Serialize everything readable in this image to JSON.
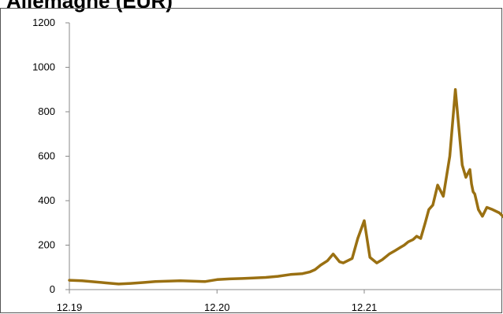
{
  "chart_data": {
    "type": "line",
    "title": "Allemagne (EUR)",
    "xlabel": "",
    "ylabel": "",
    "ylim": [
      0,
      1200
    ],
    "yticks": [
      0,
      200,
      400,
      600,
      800,
      1000,
      1200
    ],
    "xticks": [
      "12.19",
      "12.20",
      "12.21"
    ],
    "grid": false,
    "color": "#9A7012",
    "series": [
      {
        "x": [
          "2019-12",
          "2020-01",
          "2020-02",
          "2020-03",
          "2020-04",
          "2020-05",
          "2020-06",
          "2020-07",
          "2020-08",
          "2020-09",
          "2020-10",
          "2020-11",
          "2020-12",
          "2021-01",
          "2021-02",
          "2021-03",
          "2021-04",
          "2021-05",
          "2021-06",
          "2021-07",
          "2021-07-20",
          "2021-08",
          "2021-08-15",
          "2021-09",
          "2021-09-15",
          "2021-10",
          "2021-10-10",
          "2021-11",
          "2021-11-15",
          "2021-12",
          "2021-12-15",
          "2022-01",
          "2022-01-15",
          "2022-02",
          "2022-02-15",
          "2022-03",
          "2022-03-10",
          "2022-03-20",
          "2022-04",
          "2022-04-10",
          "2022-04-20",
          "2022-05",
          "2022-05-10",
          "2022-05-20",
          "2022-06",
          "2022-06-15",
          "2022-07",
          "2022-07-15",
          "2022-08",
          "2022-08-10",
          "2022-08-20",
          "2022-08-24",
          "2022-08-28",
          "2022-09",
          "2022-09-05",
          "2022-09-10",
          "2022-09-20",
          "2022-10",
          "2022-10-15",
          "2022-11",
          "2022-11-15",
          "2022-12"
        ],
        "values": [
          42,
          40,
          35,
          30,
          25,
          28,
          32,
          36,
          38,
          40,
          38,
          36,
          45,
          48,
          50,
          52,
          55,
          60,
          68,
          72,
          80,
          90,
          110,
          130,
          160,
          125,
          120,
          140,
          230,
          310,
          145,
          120,
          135,
          160,
          175,
          190,
          200,
          215,
          225,
          240,
          230,
          300,
          360,
          380,
          470,
          420,
          600,
          900,
          560,
          505,
          540,
          475,
          440,
          430,
          400,
          360,
          330,
          370,
          360,
          345,
          320,
          380
        ]
      }
    ]
  }
}
